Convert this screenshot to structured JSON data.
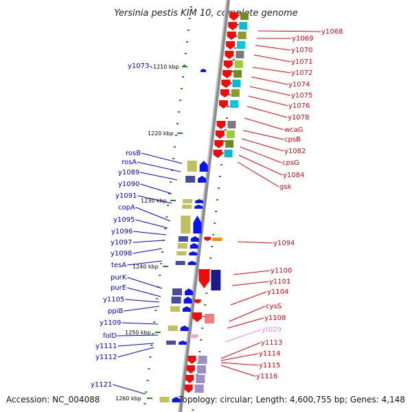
{
  "title": "Yersinia pestis KIM 10, complete genome",
  "footer": {
    "accession": "Accession: NC_004088",
    "topology": "Topology: circular; Length: 4,600,755 bp; Genes: 4,148"
  },
  "colors": {
    "backbone": "#8c8c8c",
    "tick": "#228822",
    "forward_gene": "#0a14f0",
    "reverse_gene": "#f00a0a",
    "label_red": "#e8000b",
    "label_blue": "#0000e0",
    "label_pink": "#f08ed0"
  },
  "kbp_labels": [
    "1210 kbp",
    "1220 kbp",
    "1230 kbp",
    "1240 kbp",
    "1250 kbp",
    "1260 kbp"
  ],
  "right_labels": [
    "y1068",
    "y1069",
    "y1070",
    "y1071",
    "y1072",
    "y1074",
    "y1075",
    "y1076",
    "y1078",
    "wcaG",
    "cpsB",
    "y1082",
    "cpsG",
    "y1084",
    "gsk",
    "y1094",
    "y1100",
    "y1101",
    "y1104",
    "cysS",
    "y1108",
    "yt029",
    "y1113",
    "y1114",
    "y1115",
    "y1116"
  ],
  "left_labels": [
    "y1073",
    "rosB",
    "rosA",
    "y1089",
    "y1090",
    "y1091",
    "copA",
    "y1095",
    "y1096",
    "y1097",
    "y1098",
    "tesA",
    "purK",
    "purE",
    "y1105",
    "ppiB",
    "y1109",
    "folD",
    "y1111",
    "y1112",
    "y1121"
  ]
}
